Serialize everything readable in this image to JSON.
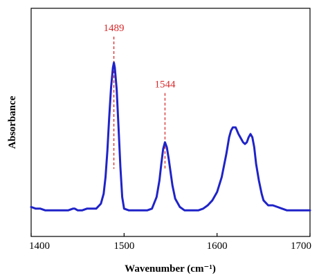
{
  "chart_data": {
    "type": "line",
    "title": "",
    "xlabel": "Wavenumber (cm⁻¹)",
    "ylabel": "Absorbance",
    "xlim": [
      1400,
      1700
    ],
    "ylim": [
      0,
      1
    ],
    "x_ticks": [
      1400,
      1500,
      1600,
      1700
    ],
    "y_ticks_shown": false,
    "grid": false,
    "legend": "none",
    "colors": {
      "line": "#1f23c8",
      "annotation": "#d7282a",
      "axis": "#000000"
    },
    "series": [
      {
        "x": [
          1400,
          1405,
          1410,
          1415,
          1420,
          1425,
          1430,
          1435,
          1440,
          1445,
          1447,
          1450,
          1455,
          1460,
          1465,
          1470,
          1475,
          1478,
          1480,
          1482,
          1484,
          1486,
          1488,
          1489,
          1490,
          1492,
          1494,
          1496,
          1498,
          1500,
          1505,
          1510,
          1515,
          1520,
          1525,
          1530,
          1535,
          1538,
          1540,
          1542,
          1544,
          1546,
          1548,
          1550,
          1552,
          1555,
          1560,
          1565,
          1570,
          1575,
          1580,
          1585,
          1590,
          1595,
          1600,
          1605,
          1610,
          1613,
          1615,
          1617,
          1620,
          1623,
          1625,
          1628,
          1630,
          1632,
          1634,
          1636,
          1638,
          1640,
          1642,
          1645,
          1648,
          1650,
          1655,
          1660,
          1665,
          1670,
          1675,
          1680,
          1685,
          1690,
          1695,
          1700
        ],
        "y": [
          0.04,
          0.03,
          0.03,
          0.02,
          0.02,
          0.02,
          0.02,
          0.02,
          0.02,
          0.03,
          0.03,
          0.02,
          0.02,
          0.03,
          0.03,
          0.03,
          0.06,
          0.12,
          0.22,
          0.38,
          0.58,
          0.76,
          0.88,
          0.91,
          0.88,
          0.75,
          0.52,
          0.28,
          0.1,
          0.03,
          0.02,
          0.02,
          0.02,
          0.02,
          0.02,
          0.03,
          0.1,
          0.2,
          0.3,
          0.39,
          0.43,
          0.4,
          0.33,
          0.25,
          0.17,
          0.09,
          0.04,
          0.02,
          0.02,
          0.02,
          0.02,
          0.03,
          0.05,
          0.08,
          0.13,
          0.22,
          0.36,
          0.46,
          0.5,
          0.52,
          0.52,
          0.48,
          0.46,
          0.43,
          0.42,
          0.43,
          0.46,
          0.48,
          0.46,
          0.4,
          0.3,
          0.2,
          0.12,
          0.08,
          0.05,
          0.05,
          0.04,
          0.03,
          0.02,
          0.02,
          0.02,
          0.02,
          0.02,
          0.02
        ]
      }
    ],
    "annotations": [
      {
        "label": "1489",
        "x": 1489,
        "y_peak": 0.91,
        "y_text": 1.1
      },
      {
        "label": "1544",
        "x": 1544,
        "y_peak": 0.43,
        "y_text": 0.76
      }
    ]
  }
}
